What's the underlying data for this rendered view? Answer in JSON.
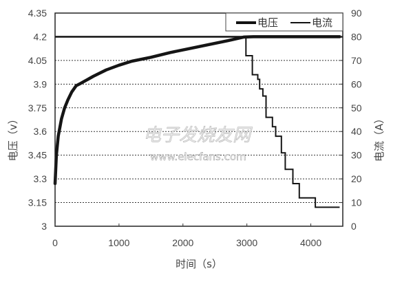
{
  "chart_data": {
    "type": "line",
    "title": "",
    "xlabel": "时间（s）",
    "ylabel": "电压（v）",
    "y2label": "电流（A）",
    "xlim": [
      0,
      4500
    ],
    "ylim": [
      3,
      4.35
    ],
    "y2lim": [
      0,
      90
    ],
    "x_ticks": [
      0,
      1000,
      2000,
      3000,
      4000
    ],
    "y_ticks": [
      "3",
      "3.15",
      "3.3",
      "3.45",
      "3.6",
      "3.75",
      "3.9",
      "4.05",
      "4.2",
      "4.35"
    ],
    "y2_ticks": [
      "0",
      "10",
      "20",
      "30",
      "40",
      "50",
      "60",
      "70",
      "80",
      "90"
    ],
    "grid": "horizontal dashed",
    "legend_position": "top-right",
    "series": [
      {
        "name": "电压",
        "axis": "left",
        "style": "thick",
        "x": [
          0,
          20,
          50,
          100,
          150,
          200,
          260,
          330,
          400,
          600,
          800,
          1000,
          1200,
          1500,
          1800,
          2100,
          2400,
          2700,
          2950,
          3100,
          3500,
          4000,
          4450
        ],
        "y": [
          3.27,
          3.45,
          3.57,
          3.68,
          3.75,
          3.8,
          3.85,
          3.89,
          3.905,
          3.95,
          3.99,
          4.02,
          4.045,
          4.07,
          4.1,
          4.125,
          4.15,
          4.175,
          4.198,
          4.2,
          4.2,
          4.2,
          4.2
        ]
      },
      {
        "name": "电流",
        "axis": "right",
        "style": "thin-step",
        "x": [
          0,
          2985,
          2985,
          3085,
          3085,
          3170,
          3170,
          3200,
          3200,
          3250,
          3250,
          3300,
          3300,
          3400,
          3400,
          3450,
          3450,
          3540,
          3540,
          3600,
          3600,
          3720,
          3720,
          3820,
          3820,
          4070,
          4070,
          4450
        ],
        "y": [
          80,
          80,
          72,
          72,
          64,
          64,
          62,
          62,
          58,
          58,
          55,
          55,
          46,
          46,
          42,
          42,
          38,
          38,
          31,
          31,
          24,
          24,
          18,
          18,
          12,
          12,
          8,
          8
        ]
      }
    ],
    "annotations": [
      "电子发烧友网",
      "www.elecfans.com"
    ]
  },
  "legend": {
    "voltage_label": "电压",
    "current_label": "电流"
  },
  "axes": {
    "x_title": "时间（s）",
    "y_left_title": "电压（v）",
    "y_right_title": "电流（A）"
  },
  "watermark": {
    "text": "电子发烧友网",
    "url": "www.elecfans.com"
  }
}
